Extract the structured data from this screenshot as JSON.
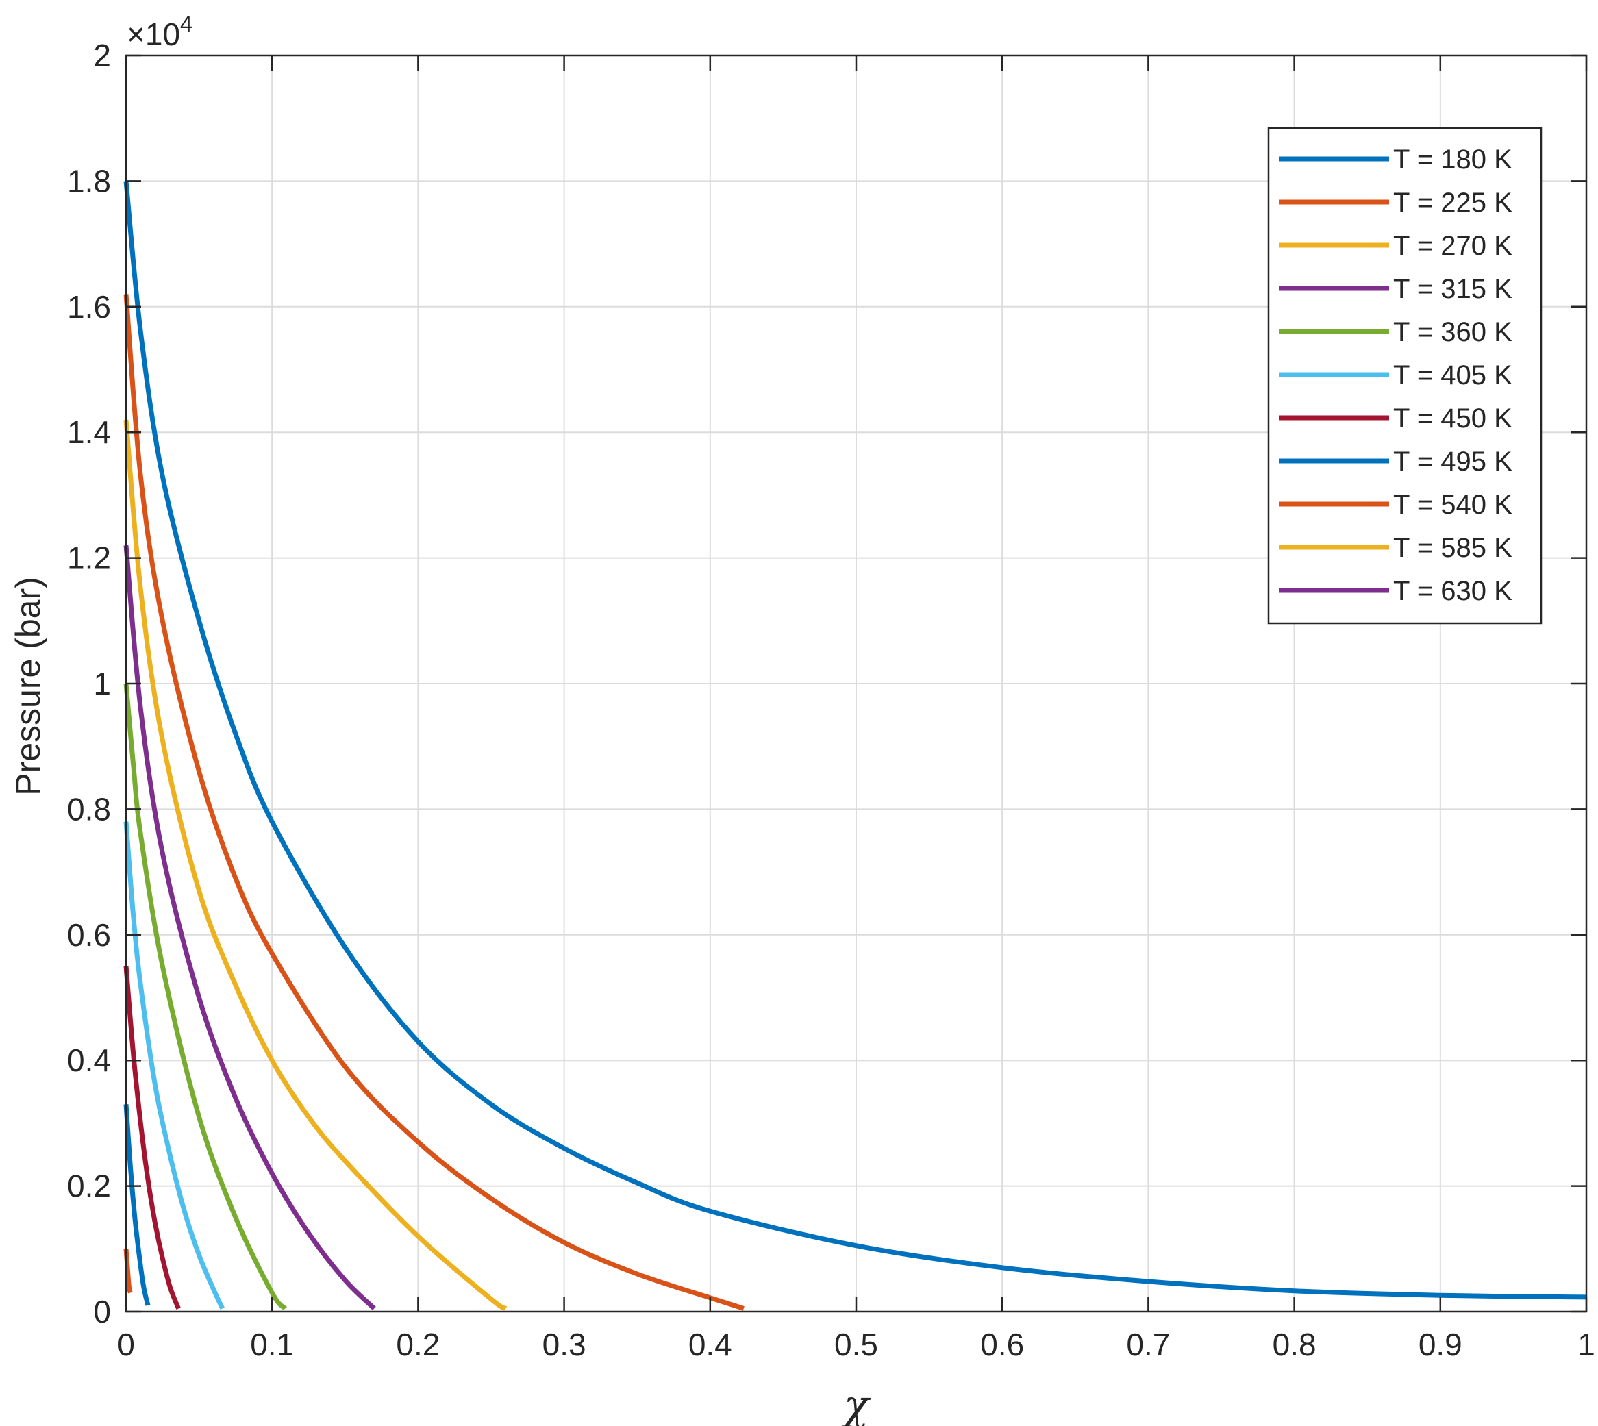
{
  "chart_data": {
    "type": "line",
    "xlabel": "χ",
    "ylabel": "Pressure (bar)",
    "xlim": [
      0,
      1
    ],
    "ylim": [
      0,
      20000
    ],
    "x_ticks": [
      0,
      0.1,
      0.2,
      0.3,
      0.4,
      0.5,
      0.6,
      0.7,
      0.8,
      0.9,
      1
    ],
    "x_tick_labels": [
      "0",
      "0.1",
      "0.2",
      "0.3",
      "0.4",
      "0.5",
      "0.6",
      "0.7",
      "0.8",
      "0.9",
      "1"
    ],
    "y_ticks": [
      0,
      2000,
      4000,
      6000,
      8000,
      10000,
      12000,
      14000,
      16000,
      18000,
      20000
    ],
    "y_tick_labels": [
      "0",
      "0.2",
      "0.4",
      "0.6",
      "0.8",
      "1",
      "1.2",
      "1.4",
      "1.6",
      "1.8",
      "2"
    ],
    "y_exponent_base": "×10",
    "y_exponent_power": "4",
    "grid": true,
    "legend_position": "top-right",
    "series": [
      {
        "name": "T = 180 K",
        "color": "#0072BD",
        "x": [
          0,
          0.01,
          0.025,
          0.05,
          0.075,
          0.1,
          0.15,
          0.2,
          0.25,
          0.3,
          0.35,
          0.4,
          0.5,
          0.6,
          0.7,
          0.8,
          0.9,
          1.0
        ],
        "y": [
          18000,
          15600,
          13300,
          11000,
          9200,
          7800,
          5800,
          4300,
          3300,
          2600,
          2050,
          1600,
          1050,
          700,
          480,
          330,
          260,
          230
        ]
      },
      {
        "name": "T = 225 K",
        "color": "#D95319",
        "x": [
          0,
          0.01,
          0.025,
          0.05,
          0.075,
          0.1,
          0.15,
          0.2,
          0.25,
          0.3,
          0.35,
          0.4,
          0.423
        ],
        "y": [
          16200,
          13300,
          11000,
          8600,
          6900,
          5700,
          3900,
          2700,
          1800,
          1100,
          600,
          220,
          50
        ]
      },
      {
        "name": "T = 270 K",
        "color": "#EDB120",
        "x": [
          0,
          0.01,
          0.025,
          0.05,
          0.075,
          0.1,
          0.125,
          0.15,
          0.2,
          0.25,
          0.26
        ],
        "y": [
          14200,
          11500,
          9100,
          6700,
          5200,
          4000,
          3100,
          2400,
          1200,
          200,
          50
        ]
      },
      {
        "name": "T = 315 K",
        "color": "#7E2F8E",
        "x": [
          0,
          0.01,
          0.025,
          0.05,
          0.075,
          0.1,
          0.125,
          0.15,
          0.17
        ],
        "y": [
          12200,
          9600,
          7300,
          5000,
          3400,
          2200,
          1250,
          500,
          50
        ]
      },
      {
        "name": "T = 360 K",
        "color": "#77AC30",
        "x": [
          0,
          0.005,
          0.01,
          0.025,
          0.05,
          0.075,
          0.1,
          0.109
        ],
        "y": [
          10000,
          8700,
          7600,
          5500,
          3100,
          1500,
          300,
          50
        ]
      },
      {
        "name": "T = 405 K",
        "color": "#4DBEEE",
        "x": [
          0,
          0.005,
          0.01,
          0.02,
          0.03,
          0.04,
          0.05,
          0.06,
          0.066
        ],
        "y": [
          7800,
          6300,
          5200,
          3600,
          2500,
          1600,
          900,
          350,
          50
        ]
      },
      {
        "name": "T = 450 K",
        "color": "#A2142F",
        "x": [
          0,
          0.005,
          0.01,
          0.015,
          0.02,
          0.025,
          0.03,
          0.035,
          0.036
        ],
        "y": [
          5500,
          4100,
          3000,
          2100,
          1400,
          850,
          400,
          100,
          50
        ]
      },
      {
        "name": "T = 495 K",
        "color": "#0072BD",
        "x": [
          0,
          0.003,
          0.006,
          0.009,
          0.012,
          0.015
        ],
        "y": [
          3300,
          2300,
          1500,
          900,
          400,
          100
        ]
      },
      {
        "name": "T = 540 K",
        "color": "#D95319",
        "x": [
          0,
          0.001,
          0.002,
          0.003
        ],
        "y": [
          1000,
          700,
          400,
          300
        ]
      },
      {
        "name": "T = 585 K",
        "color": "#EDB120",
        "x": [],
        "y": []
      },
      {
        "name": "T = 630 K",
        "color": "#7E2F8E",
        "x": [],
        "y": []
      }
    ]
  }
}
